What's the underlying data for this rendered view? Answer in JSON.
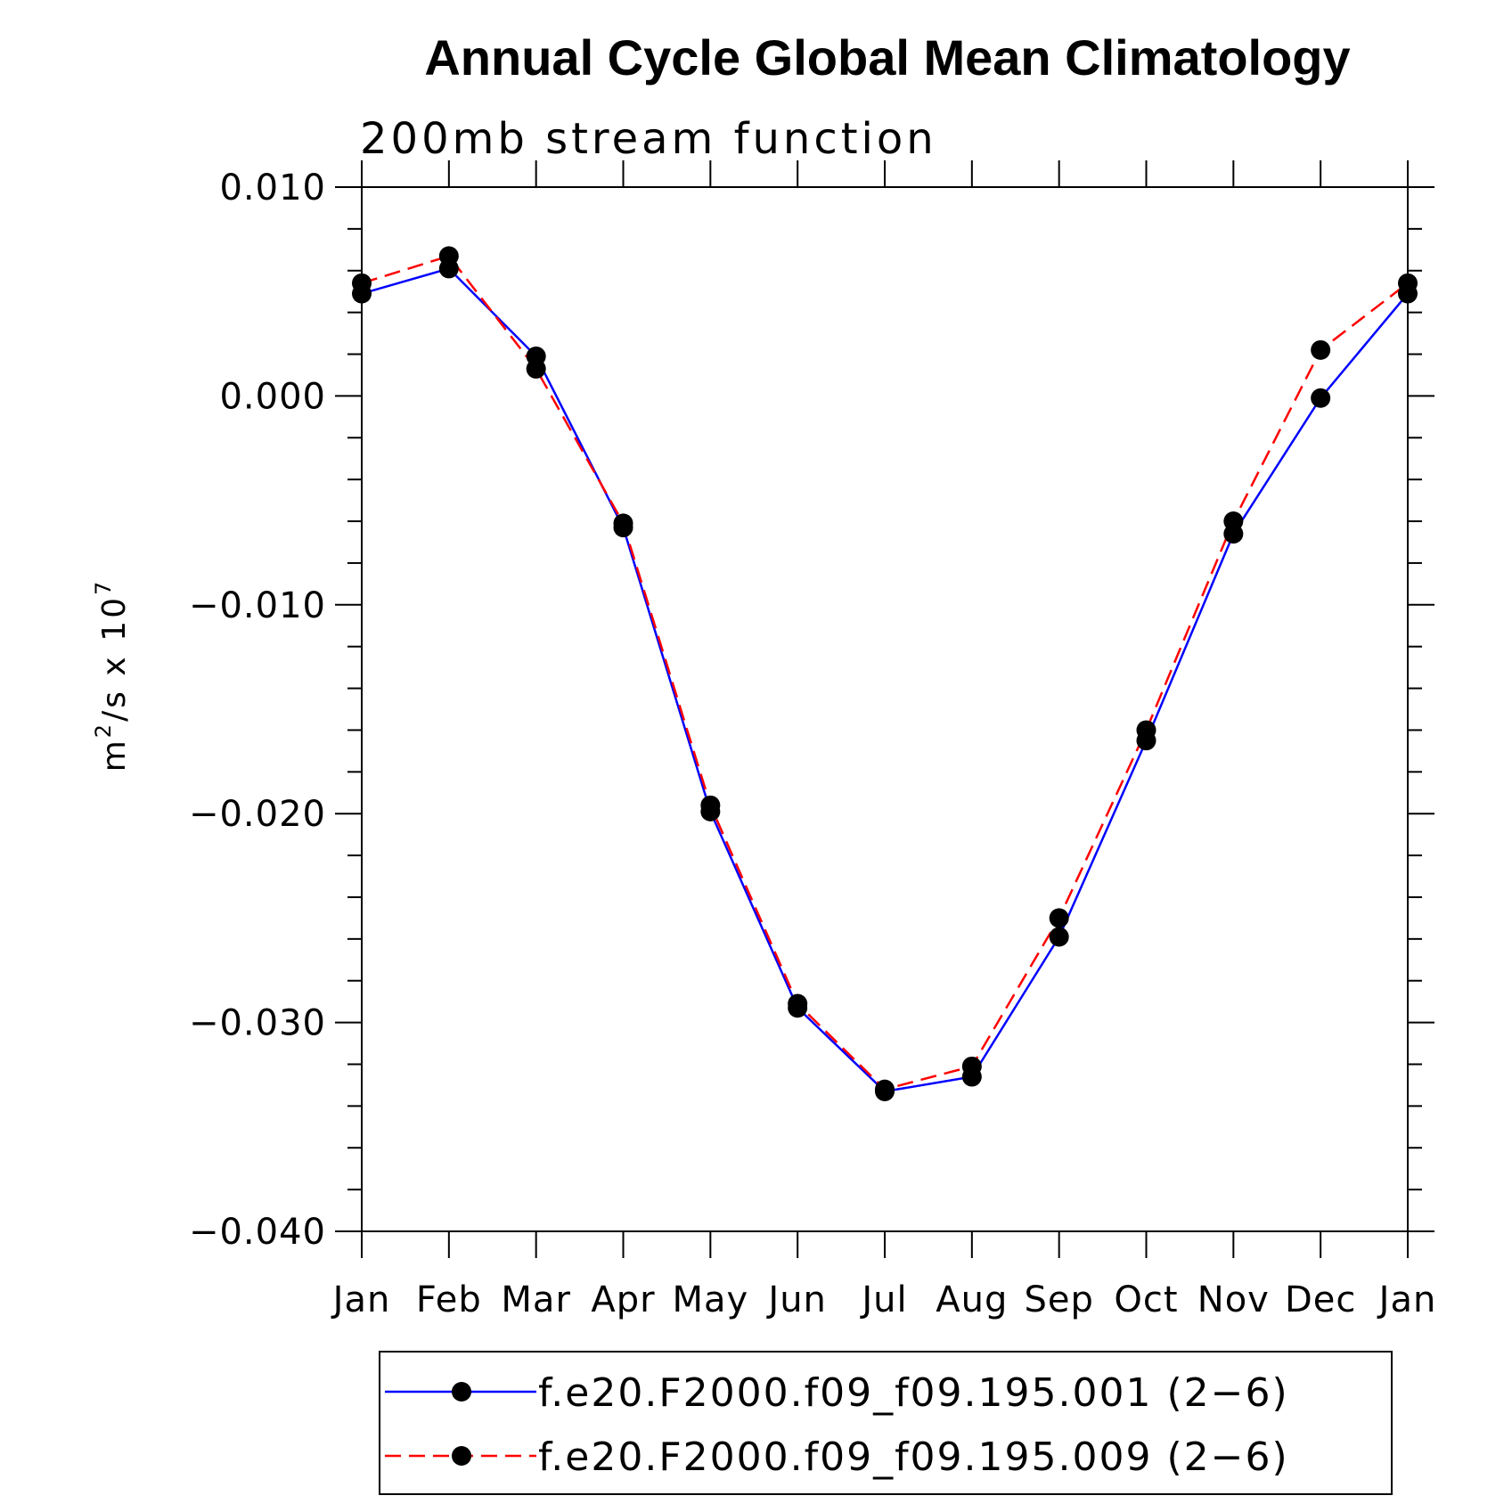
{
  "chart_data": {
    "type": "line",
    "title": "Annual Cycle Global Mean Climatology",
    "subtitle": "200mb stream function",
    "ylabel": "m²/s x 10⁷",
    "ylabel_parts": {
      "base": "m",
      "sup1": "2",
      "mid": "/s x 10",
      "sup2": "7"
    },
    "categories": [
      "Jan",
      "Feb",
      "Mar",
      "Apr",
      "May",
      "Jun",
      "Jul",
      "Aug",
      "Sep",
      "Oct",
      "Nov",
      "Dec",
      "Jan"
    ],
    "ylim": [
      -0.04,
      0.01
    ],
    "yticks": [
      0.01,
      0.0,
      -0.01,
      -0.02,
      -0.03,
      -0.04
    ],
    "ytick_labels": [
      "0.010",
      "0.000",
      "−0.010",
      "−0.020",
      "−0.030",
      "−0.040"
    ],
    "grid": false,
    "legend_position": "bottom",
    "series": [
      {
        "name": "f.e20.F2000.f09_f09.195.001 (2−6)",
        "color": "#0000ff",
        "style": "solid",
        "values": [
          0.0049,
          0.0061,
          0.0019,
          -0.0063,
          -0.0199,
          -0.0293,
          -0.0333,
          -0.0326,
          -0.0259,
          -0.0165,
          -0.0066,
          -0.0001,
          0.0049
        ]
      },
      {
        "name": "f.e20.F2000.f09_f09.195.009 (2−6)",
        "color": "#ff0000",
        "style": "dashed",
        "values": [
          0.0054,
          0.0067,
          0.0013,
          -0.0061,
          -0.0196,
          -0.0291,
          -0.0332,
          -0.0321,
          -0.025,
          -0.016,
          -0.006,
          0.0022,
          0.0054
        ]
      }
    ]
  }
}
